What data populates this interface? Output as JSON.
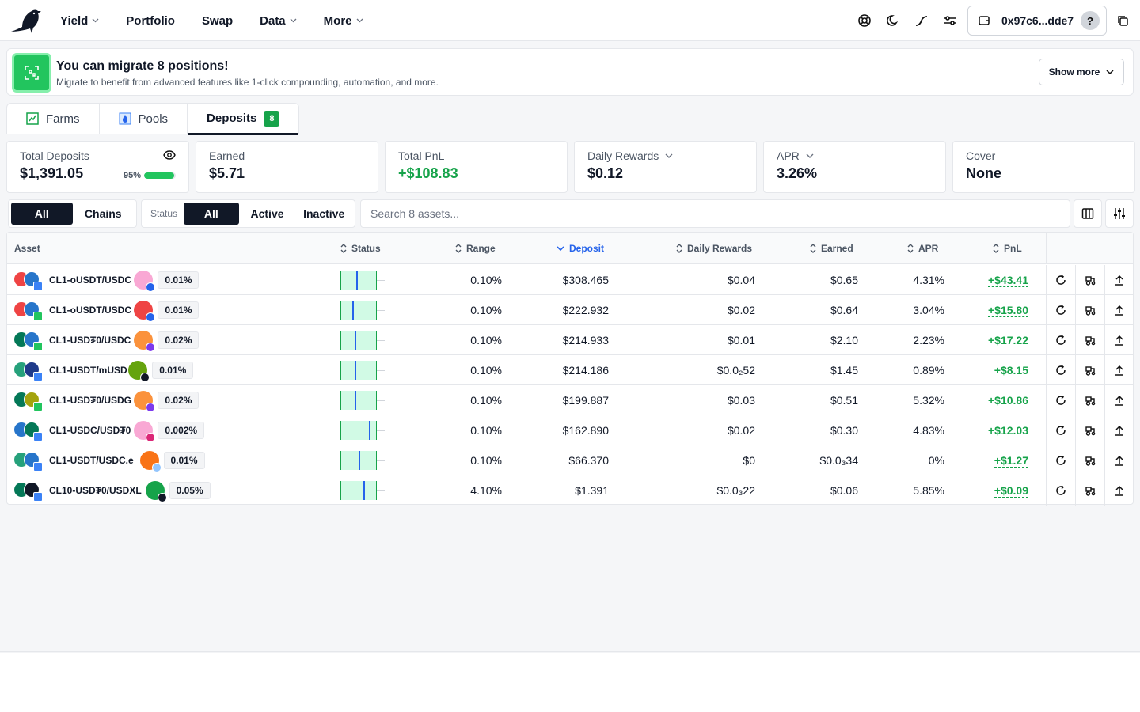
{
  "header": {
    "nav": [
      {
        "label": "Yield",
        "has_dropdown": true
      },
      {
        "label": "Portfolio",
        "has_dropdown": false
      },
      {
        "label": "Swap",
        "has_dropdown": false
      },
      {
        "label": "Data",
        "has_dropdown": true
      },
      {
        "label": "More",
        "has_dropdown": true
      }
    ],
    "icons": [
      "support-icon",
      "moon-icon",
      "chart-curve-icon",
      "settings-sliders-icon"
    ],
    "wallet_address": "0x97c6...dde7",
    "help_label": "?"
  },
  "banner": {
    "title": "You can migrate 8 positions!",
    "subtitle": "Migrate to benefit from advanced features like 1-click compounding, automation, and more.",
    "button": "Show more"
  },
  "tabs": [
    {
      "label": "Farms",
      "icon": "farm-icon"
    },
    {
      "label": "Pools",
      "icon": "drop-icon"
    },
    {
      "label": "Deposits",
      "badge": "8",
      "active": true
    }
  ],
  "stats": {
    "total_deposits": {
      "label": "Total Deposits",
      "value": "$1,391.05",
      "progress_label": "95%",
      "progress": 0.95
    },
    "earned": {
      "label": "Earned",
      "value": "$5.71"
    },
    "total_pnl": {
      "label": "Total PnL",
      "value": "+$108.83"
    },
    "daily_rewards": {
      "label": "Daily Rewards",
      "value": "$0.12"
    },
    "apr": {
      "label": "APR",
      "value": "3.26%"
    },
    "cover": {
      "label": "Cover",
      "value": "None"
    }
  },
  "filters": {
    "scope": [
      "All",
      "Chains"
    ],
    "status_label": "Status",
    "status": [
      "All",
      "Active",
      "Inactive"
    ],
    "search_placeholder": "Search 8 assets..."
  },
  "table": {
    "columns": {
      "asset": "Asset",
      "status": "Status",
      "range": "Range",
      "deposit": "Deposit",
      "daily_rewards": "Daily Rewards",
      "earned": "Earned",
      "apr": "APR",
      "pnl": "PnL"
    },
    "rows": [
      {
        "asset": "CL1-oUSDT/USDC",
        "fee": "0.01%",
        "range": "0.10%",
        "deposit": "$308.465",
        "daily": "$0.04",
        "earned": "$0.65",
        "apr": "4.31%",
        "pnl": "+$43.41",
        "price_pos": 0.45,
        "tok_a": "#ef4444",
        "tok_b": "#2775ca",
        "chain": "#3b82f6",
        "dex": "#f9a8d4",
        "dex_sub": "#2563eb"
      },
      {
        "asset": "CL1-oUSDT/USDC",
        "fee": "0.01%",
        "range": "0.10%",
        "deposit": "$222.932",
        "daily": "$0.02",
        "earned": "$0.64",
        "apr": "3.04%",
        "pnl": "+$15.80",
        "price_pos": 0.35,
        "tok_a": "#ef4444",
        "tok_b": "#2775ca",
        "chain": "#22c55e",
        "dex": "#ef4444",
        "dex_sub": "#2563eb"
      },
      {
        "asset": "CL1-USD₮0/USDC",
        "fee": "0.02%",
        "range": "0.10%",
        "deposit": "$214.933",
        "daily": "$0.01",
        "earned": "$2.10",
        "apr": "2.23%",
        "pnl": "+$17.22",
        "price_pos": 0.42,
        "tok_a": "#047857",
        "tok_b": "#2775ca",
        "chain": "#22c55e",
        "dex": "#fb923c",
        "dex_sub": "#7c3aed"
      },
      {
        "asset": "CL1-USDT/mUSD",
        "fee": "0.01%",
        "range": "0.10%",
        "deposit": "$214.186",
        "daily": "$0.0₂52",
        "earned": "$1.45",
        "apr": "0.89%",
        "pnl": "+$8.15",
        "price_pos": 0.42,
        "tok_a": "#26a17b",
        "tok_b": "#1e3a8a",
        "chain": "#3b82f6",
        "dex": "#65a30d",
        "dex_sub": "#111827"
      },
      {
        "asset": "CL1-USD₮0/USDG",
        "fee": "0.02%",
        "range": "0.10%",
        "deposit": "$199.887",
        "daily": "$0.03",
        "earned": "$0.51",
        "apr": "5.32%",
        "pnl": "+$10.86",
        "price_pos": 0.42,
        "tok_a": "#047857",
        "tok_b": "#a3a30d",
        "chain": "#22c55e",
        "dex": "#fb923c",
        "dex_sub": "#7c3aed"
      },
      {
        "asset": "CL1-USDC/USD₮0",
        "fee": "0.002%",
        "range": "0.10%",
        "deposit": "$162.890",
        "daily": "$0.02",
        "earned": "$0.30",
        "apr": "4.83%",
        "pnl": "+$12.03",
        "price_pos": 0.82,
        "tok_a": "#2775ca",
        "tok_b": "#047857",
        "chain": "#3b82f6",
        "dex": "#f9a8d4",
        "dex_sub": "#db2777"
      },
      {
        "asset": "CL1-USDT/USDC.e",
        "fee": "0.01%",
        "range": "0.10%",
        "deposit": "$66.370",
        "daily": "$0",
        "earned": "$0.0₃34",
        "apr": "0%",
        "pnl": "+$1.27",
        "price_pos": 0.52,
        "tok_a": "#26a17b",
        "tok_b": "#2775ca",
        "chain": "#3b82f6",
        "dex": "#f97316",
        "dex_sub": "#93c5fd"
      },
      {
        "asset": "CL10-USD₮0/USDXL",
        "fee": "0.05%",
        "range": "4.10%",
        "deposit": "$1.391",
        "daily": "$0.0₃22",
        "earned": "$0.06",
        "apr": "5.85%",
        "pnl": "+$0.09",
        "price_pos": 0.65,
        "tok_a": "#047857",
        "tok_b": "#111827",
        "chain": "#3b82f6",
        "dex": "#16a34a",
        "dex_sub": "#111827"
      }
    ]
  }
}
